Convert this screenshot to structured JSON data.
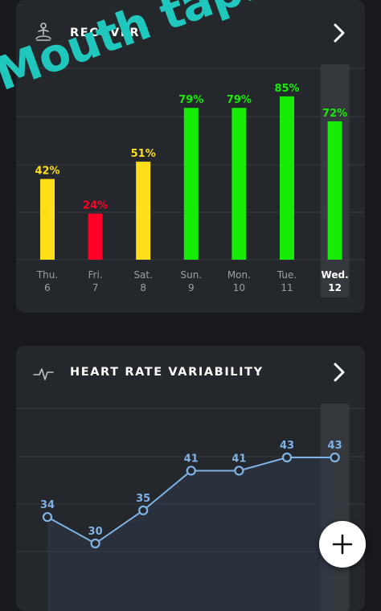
{
  "recovery": {
    "title": "RECOVERY",
    "icon": "meditation-icon",
    "chart_data": {
      "type": "bar",
      "categories": [
        "Thu. 6",
        "Fri. 7",
        "Sat. 8",
        "Sun. 9",
        "Mon. 10",
        "Tue. 11",
        "Wed. 12"
      ],
      "days": [
        {
          "weekday": "Thu.",
          "date": "6"
        },
        {
          "weekday": "Fri.",
          "date": "7"
        },
        {
          "weekday": "Sat.",
          "date": "8"
        },
        {
          "weekday": "Sun.",
          "date": "9"
        },
        {
          "weekday": "Mon.",
          "date": "10"
        },
        {
          "weekday": "Tue.",
          "date": "11"
        },
        {
          "weekday": "Wed.",
          "date": "12"
        }
      ],
      "values": [
        42,
        24,
        51,
        79,
        79,
        85,
        72
      ],
      "value_labels": [
        "42%",
        "24%",
        "51%",
        "79%",
        "79%",
        "85%",
        "72%"
      ],
      "colors": [
        "#ffde1a",
        "#ff0026",
        "#ffde1a",
        "#16ec06",
        "#16ec06",
        "#16ec06",
        "#16ec06"
      ],
      "selected_index": 6,
      "ylim": [
        0,
        100
      ],
      "grid": true
    }
  },
  "hrv": {
    "title": "HEART RATE VARIABILITY",
    "icon": "heartbeat-icon",
    "chart_data": {
      "type": "line",
      "values": [
        34,
        30,
        35,
        41,
        41,
        43,
        43
      ],
      "value_labels": [
        "34",
        "30",
        "35",
        "41",
        "41",
        "43",
        "43"
      ],
      "selected_index": 6,
      "grid": true
    }
  },
  "overlay": {
    "text": "Mouth taping"
  },
  "fab": {
    "icon": "plus-icon"
  },
  "colors": {
    "background": "#17191c",
    "card": "#24272b",
    "recovery_green": "#16ec06",
    "recovery_yellow": "#ffde1a",
    "recovery_red": "#ff0026",
    "hrv_line": "#7fb2e5",
    "overlay_text": "#20c7bd"
  }
}
